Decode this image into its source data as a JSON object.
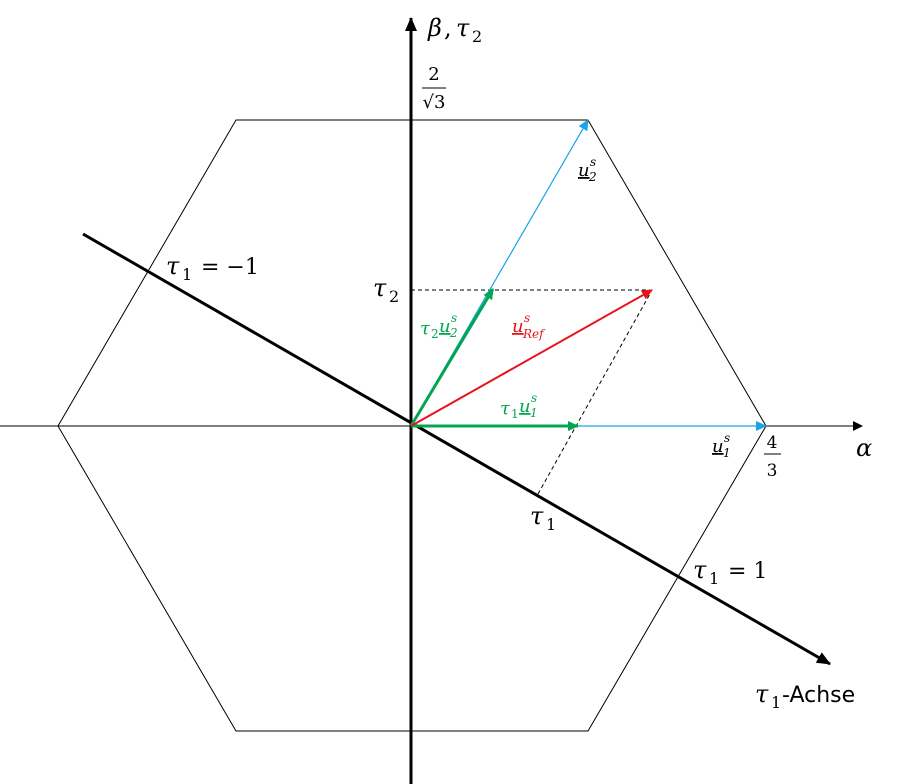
{
  "axes": {
    "vertical": [
      "β",
      ", ",
      "τ",
      "2"
    ],
    "horizontal": "α",
    "tau1_axis": [
      "τ",
      "1",
      "-Achse"
    ]
  },
  "ticks": {
    "top": {
      "num": "2",
      "den": "√3"
    },
    "right": {
      "num": "4",
      "den": "3"
    },
    "tau1_neg": [
      "τ",
      "1",
      " = −1"
    ],
    "tau1_pos": [
      "τ",
      "1",
      " = 1"
    ],
    "tau1": [
      "τ",
      "1"
    ],
    "tau2": [
      "τ",
      "2"
    ]
  },
  "vectors": {
    "u1": [
      "u",
      "1",
      "s"
    ],
    "u2": [
      "u",
      "2",
      "s"
    ],
    "uref": [
      "u",
      "Ref",
      "s"
    ],
    "tau1_u1": [
      "τ",
      "1",
      "u",
      "1",
      "s"
    ],
    "tau2_u2": [
      "τ",
      "2",
      "u",
      "2",
      "s"
    ]
  }
}
